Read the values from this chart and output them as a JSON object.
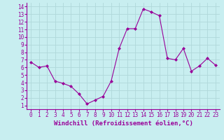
{
  "x": [
    0,
    1,
    2,
    3,
    4,
    5,
    6,
    7,
    8,
    9,
    10,
    11,
    12,
    13,
    14,
    15,
    16,
    17,
    18,
    19,
    20,
    21,
    22,
    23
  ],
  "y": [
    6.7,
    6.0,
    6.2,
    4.2,
    3.9,
    3.5,
    2.5,
    1.2,
    1.7,
    2.2,
    4.2,
    8.5,
    11.1,
    11.1,
    13.7,
    13.3,
    12.8,
    7.2,
    7.0,
    8.5,
    5.5,
    6.2,
    7.2,
    6.3
  ],
  "line_color": "#990099",
  "marker": "D",
  "marker_size": 2,
  "background_color": "#c8eef0",
  "grid_color": "#b0d8da",
  "xlabel": "Windchill (Refroidissement éolien,°C)",
  "xlabel_color": "#990099",
  "tick_color": "#990099",
  "xtick_labels": [
    "0",
    "1",
    "2",
    "3",
    "4",
    "5",
    "6",
    "7",
    "8",
    "9",
    "10",
    "11",
    "12",
    "13",
    "14",
    "15",
    "16",
    "17",
    "18",
    "19",
    "20",
    "21",
    "22",
    "23"
  ],
  "ytick_labels": [
    "1",
    "2",
    "3",
    "4",
    "5",
    "6",
    "7",
    "8",
    "9",
    "10",
    "11",
    "12",
    "13",
    "14"
  ],
  "ylim": [
    0.5,
    14.5
  ],
  "xlim": [
    -0.5,
    23.5
  ],
  "tick_fontsize": 5.5,
  "xlabel_fontsize": 6.5
}
